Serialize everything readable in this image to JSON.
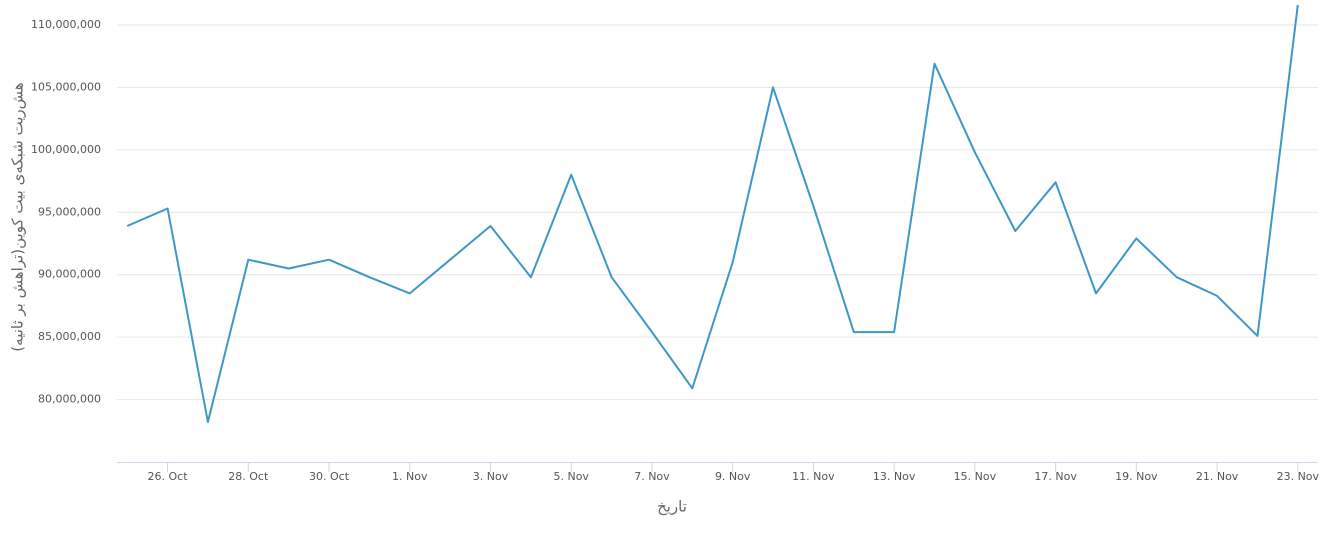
{
  "chart_data": {
    "type": "line",
    "y_label": "هش‌ریت شبکه‌ی بیت کوین(تراهش بر ثانیه)",
    "x_label": "تاریخ",
    "categories": [
      null,
      "26. Oct",
      null,
      "28. Oct",
      null,
      "30. Oct",
      null,
      "1. Nov",
      null,
      "3. Nov",
      null,
      "5. Nov",
      null,
      "7. Nov",
      null,
      "9. Nov",
      null,
      "11. Nov",
      null,
      "13. Nov",
      null,
      "15. Nov",
      null,
      "17. Nov",
      null,
      "19. Nov",
      null,
      "21. Nov",
      null,
      "23. Nov"
    ],
    "series": [
      {
        "color": "#3d97c8",
        "values": [
          93900000,
          95300000,
          78200000,
          91200000,
          90500000,
          91200000,
          89800000,
          88500000,
          91200000,
          93900000,
          89800000,
          98000000,
          89800000,
          85400000,
          80900000,
          91000000,
          105000000,
          95500000,
          85400000,
          85400000,
          106900000,
          99800000,
          93500000,
          97400000,
          88500000,
          92900000,
          89800000,
          88300000,
          85100000,
          111600000
        ]
      }
    ],
    "ylim": [
      75000000,
      112000000
    ],
    "yticks": [
      {
        "value": 80000000,
        "label": "80,000,000"
      },
      {
        "value": 85000000,
        "label": "85,000,000"
      },
      {
        "value": 90000000,
        "label": "90,000,000"
      },
      {
        "value": 95000000,
        "label": "95,000,000"
      },
      {
        "value": 100000000,
        "label": "100,000,000"
      },
      {
        "value": 105000000,
        "label": "105,000,000"
      },
      {
        "value": 110000000,
        "label": "110,000,000"
      }
    ],
    "grid": true
  }
}
